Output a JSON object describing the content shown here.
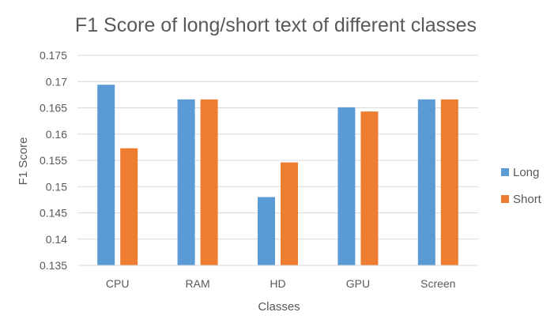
{
  "chart_data": {
    "type": "bar",
    "title": "F1 Score of long/short text of different classes",
    "xlabel": "Classes",
    "ylabel": "F1 Score",
    "categories": [
      "CPU",
      "RAM",
      "HD",
      "GPU",
      "Screen"
    ],
    "series": [
      {
        "name": "Long",
        "color": "#5B9BD5",
        "values": [
          0.1694,
          0.1666,
          0.148,
          0.1651,
          0.1666
        ]
      },
      {
        "name": "Short",
        "color": "#ED7D31",
        "values": [
          0.1573,
          0.1666,
          0.1546,
          0.1643,
          0.1666
        ]
      }
    ],
    "ylim": [
      0.135,
      0.175
    ],
    "yticks": [
      "0.135",
      "0.14",
      "0.145",
      "0.15",
      "0.155",
      "0.16",
      "0.165",
      "0.17",
      "0.175"
    ],
    "grid": true,
    "legend_position": "right"
  }
}
